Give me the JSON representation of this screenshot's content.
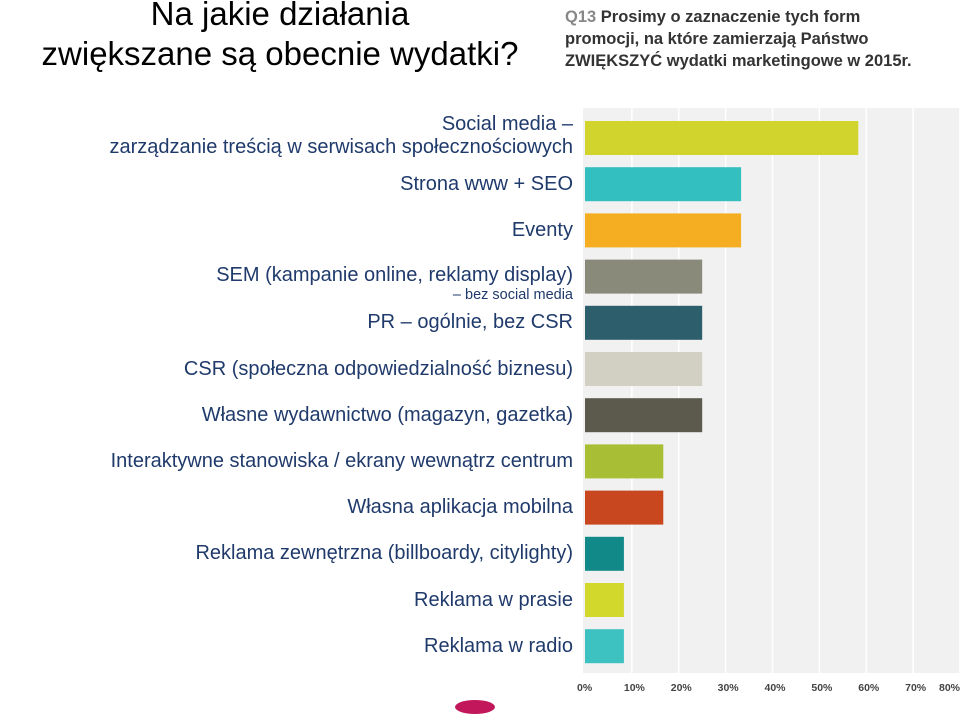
{
  "title_lines": [
    "Na jakie działania",
    "zwiększane są obecnie wydatki?"
  ],
  "question": {
    "number": "Q13",
    "line1": "Prosimy o zaznaczenie tych form",
    "line2": "promocji, na które zamierzają Państwo",
    "line3": "ZWIĘKSZYĆ wydatki marketingowe w 2015r."
  },
  "colors": {
    "plot_background": "#f1f1f1",
    "grid": "#ffffff",
    "label_text": "#1f3a6b"
  },
  "chart_data": {
    "type": "bar",
    "orientation": "horizontal",
    "grid": true,
    "xlim": [
      0,
      80
    ],
    "x_ticks": [
      "0%",
      "10%",
      "20%",
      "30%",
      "40%",
      "50%",
      "60%",
      "70%",
      "80%"
    ],
    "categories": [
      {
        "lines": [
          "Social media –",
          "zarządzanie treścią w serwisach społecznościowych"
        ]
      },
      {
        "lines": [
          "Strona www + SEO"
        ]
      },
      {
        "lines": [
          "Eventy"
        ]
      },
      {
        "lines": [
          "SEM (kampanie online, reklamy display)"
        ],
        "sub": "– bez social media"
      },
      {
        "lines": [
          "PR – ogólnie, bez CSR"
        ]
      },
      {
        "lines": [
          "CSR (społeczna odpowiedzialność biznesu)"
        ]
      },
      {
        "lines": [
          "Własne wydawnictwo (magazyn, gazetka)"
        ]
      },
      {
        "lines": [
          "Interaktywne stanowiska / ekrany wewnątrz centrum"
        ]
      },
      {
        "lines": [
          "Własna aplikacja mobilna"
        ]
      },
      {
        "lines": [
          "Reklama zewnętrzna (billboardy, citylighty)"
        ]
      },
      {
        "lines": [
          "Reklama w prasie"
        ]
      },
      {
        "lines": [
          "Reklama w radio"
        ]
      }
    ],
    "values": [
      58.3,
      33.3,
      33.3,
      25.0,
      25.0,
      25.0,
      25.0,
      16.7,
      16.7,
      8.3,
      8.3,
      8.3
    ],
    "bar_colors": [
      "#d0d42c",
      "#33bebf",
      "#f5ad21",
      "#8a8a7b",
      "#2c5e6c",
      "#d2d0c3",
      "#5b5a4d",
      "#a8bf35",
      "#c8471e",
      "#128989",
      "#d2d82c",
      "#3dc1c1"
    ]
  }
}
